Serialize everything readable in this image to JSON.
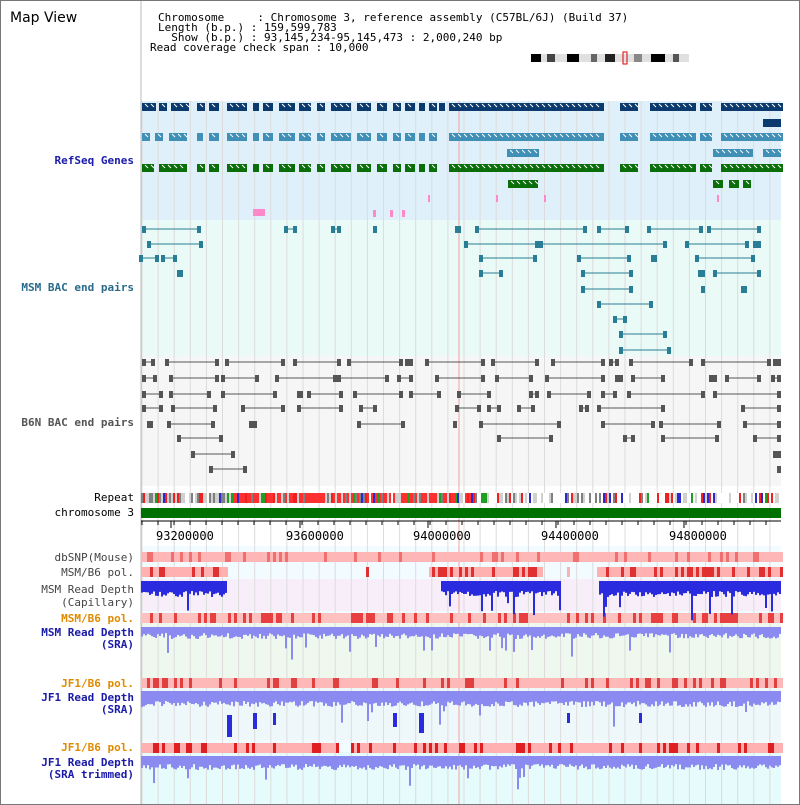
{
  "header": {
    "title": "Map View",
    "chromosome_line": "Chromosome     : Chromosome 3, reference assembly (C57BL/6J) (Build 37)",
    "length_line": "Length (b.p.) : 159,599,783",
    "show_line": "  Show (b.p.) : 93,145,234-95,145,473 : 2,000,240 bp",
    "coverage_line": "Read coverage check span : 10,000"
  },
  "tracks": {
    "refseq": "RefSeq Genes",
    "msm_bac": "MSM BAC end pairs",
    "b6n_bac": "B6N BAC end pairs",
    "repeat": "Repeat",
    "chromosome": "chromosome 3",
    "dbsnp": "dbSNP(Mouse)",
    "msm_b6_pol": "MSM/B6 pol.",
    "msm_depth_cap_1": "MSM Read Depth",
    "msm_depth_cap_2": "(Capillary)",
    "msm_b6_pol_2": "MSM/B6 pol.",
    "msm_depth_sra_1": "MSM Read Depth",
    "msm_depth_sra_2": "(SRA)",
    "jf1_b6_pol": "JF1/B6 pol.",
    "jf1_depth_sra_1": "JF1 Read Depth",
    "jf1_depth_sra_2": "(SRA)",
    "jf1_b6_pol_2": "JF1/B6 pol.",
    "jf1_depth_trim_1": "JF1 Read Depth",
    "jf1_depth_trim_2": "(SRA trimmed)"
  },
  "axis": {
    "ticks": [
      "93200000",
      "93600000",
      "94000000",
      "94400000",
      "94800000"
    ]
  },
  "colors": {
    "refseq_dark": "#0b3a6e",
    "refseq_mid": "#3f8fb7",
    "refseq_green": "#0a6e0a",
    "msm_bac": "#2a7d96",
    "b6n_bac": "#555555",
    "chrom_bar": "#007000",
    "snp_light": "#ffc8c8",
    "snp_red": "#e02020",
    "depth_blue": "#2a2adf",
    "depth_light": "#8a8af0",
    "msm_label": "#1a1aa8",
    "orange_label": "#e08a00"
  }
}
